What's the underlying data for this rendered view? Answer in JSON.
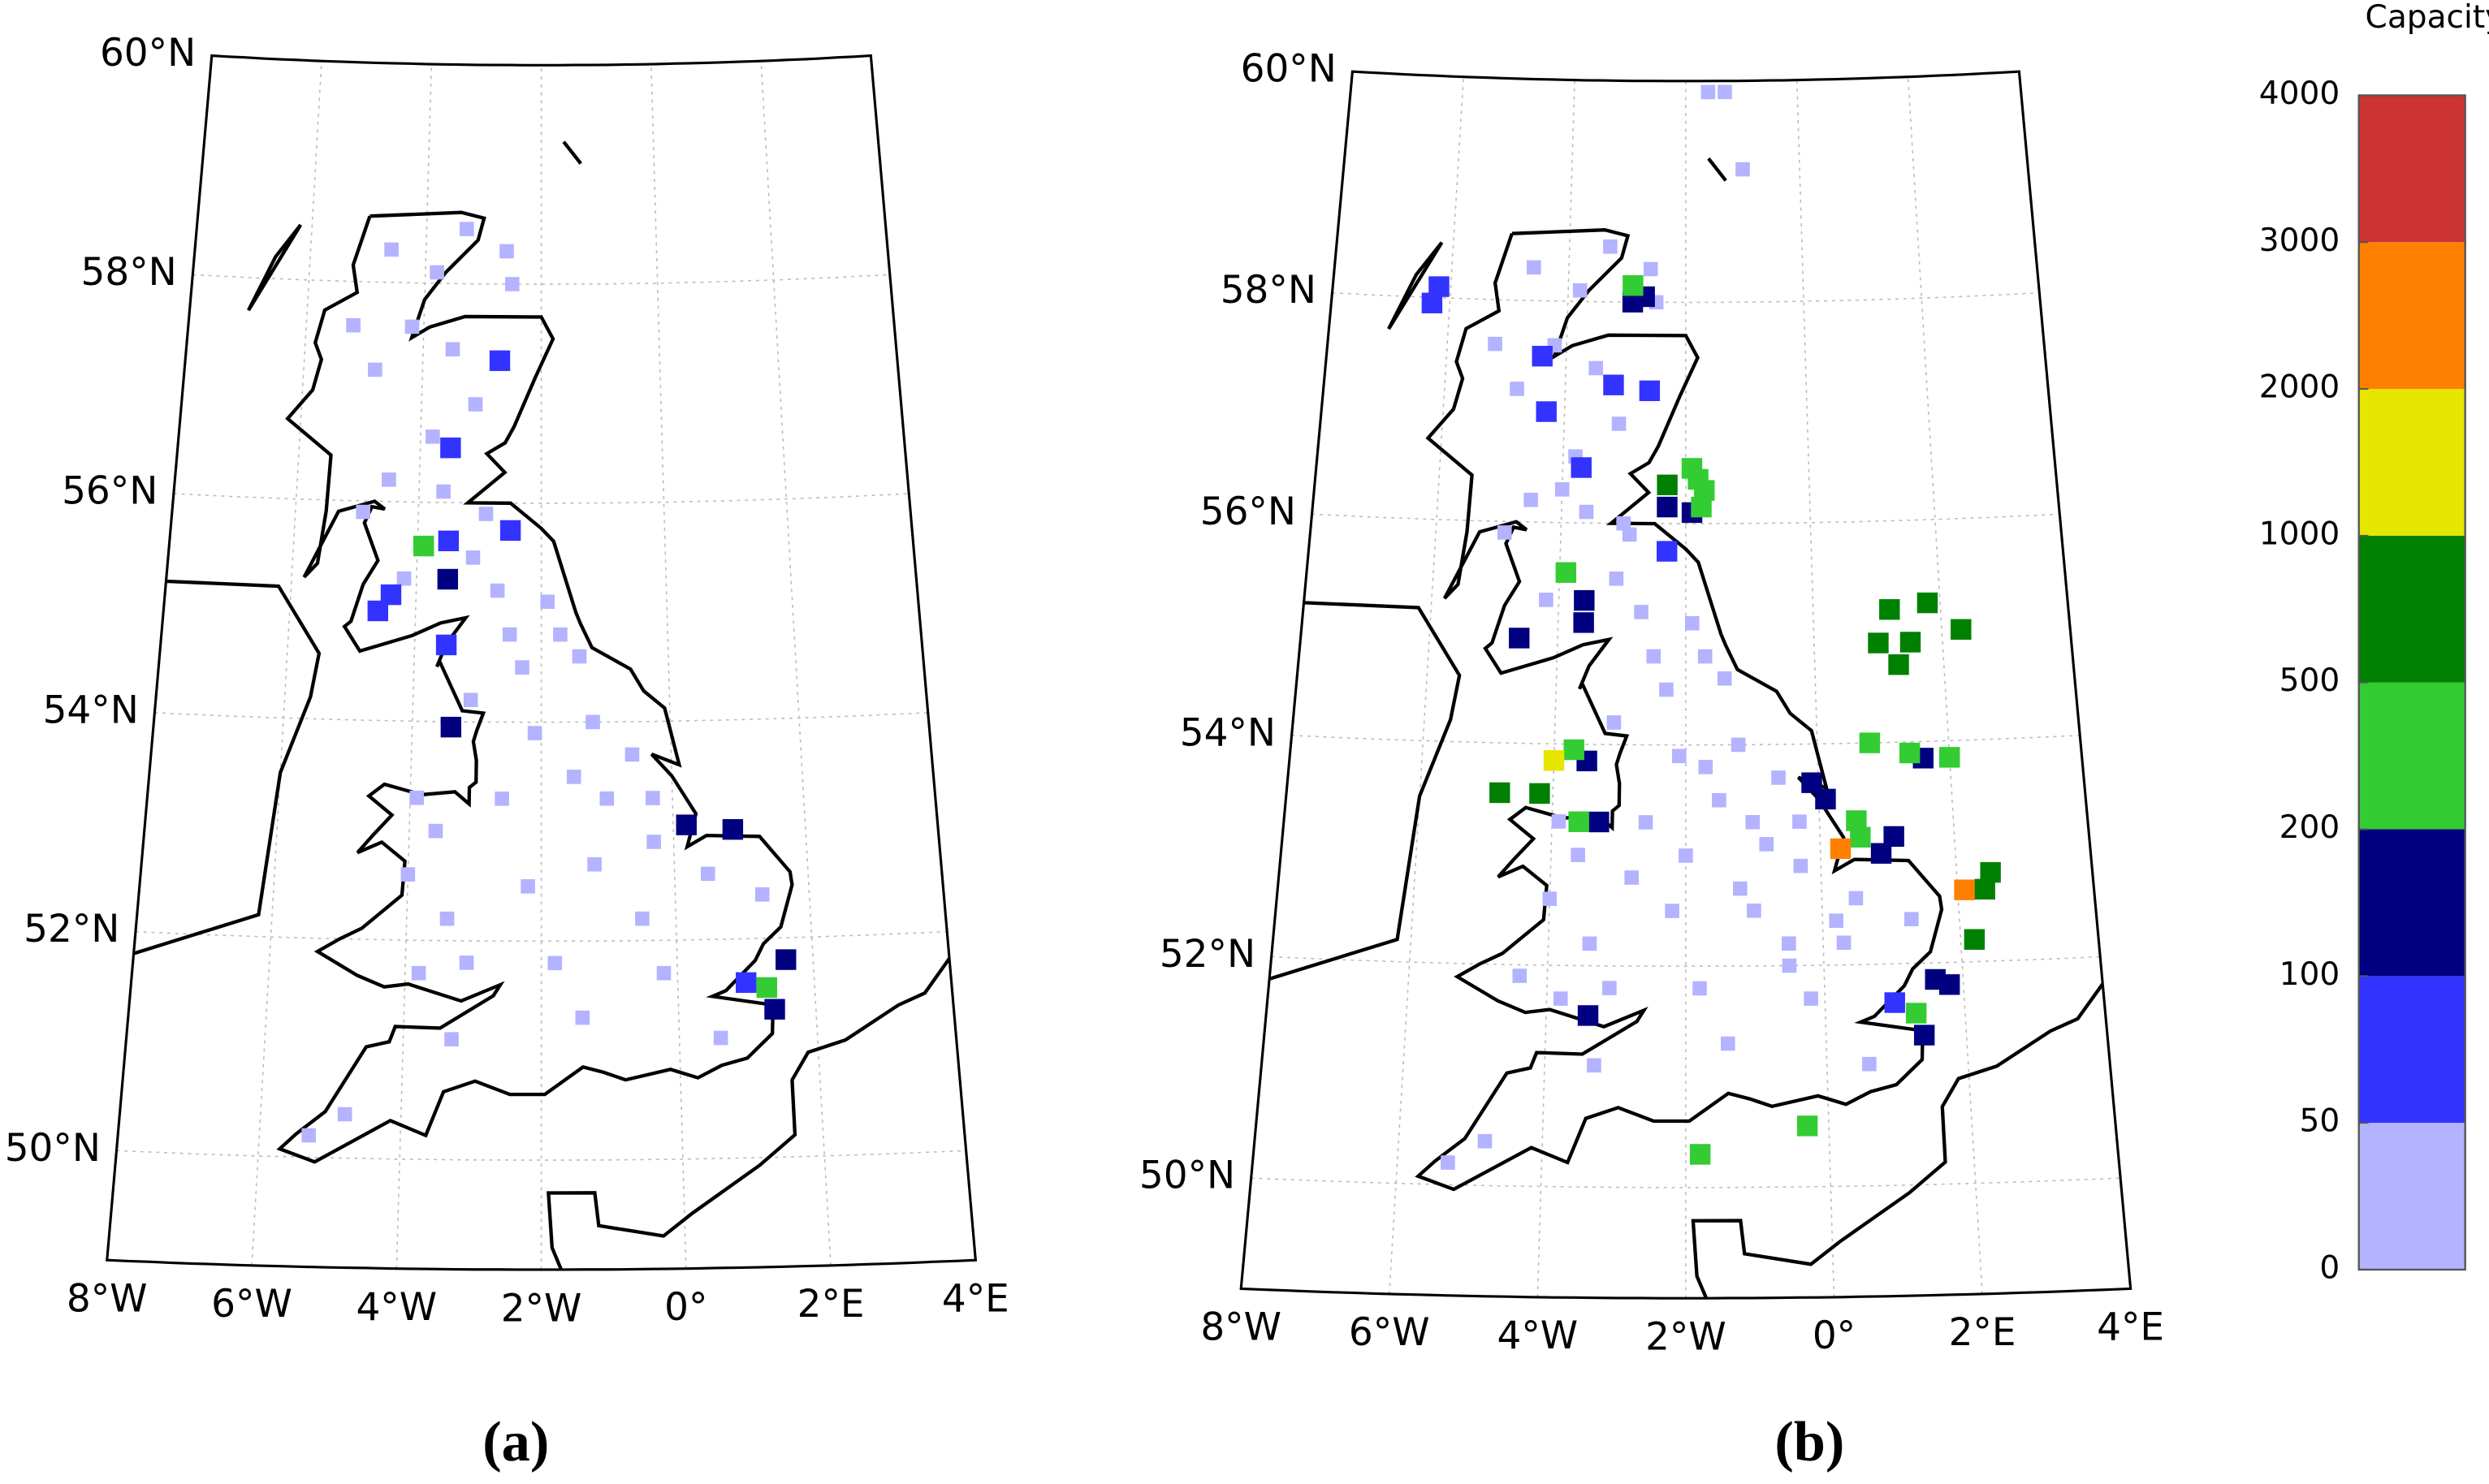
{
  "panels": [
    {
      "label": "(a)",
      "xlim": [
        -8,
        4
      ],
      "ylim": [
        49,
        60
      ],
      "xticks": [
        {
          "value": -8,
          "label": "8°W"
        },
        {
          "value": -6,
          "label": "6°W"
        },
        {
          "value": -4,
          "label": "4°W"
        },
        {
          "value": -2,
          "label": "2°W"
        },
        {
          "value": 0,
          "label": "0°"
        },
        {
          "value": 2,
          "label": "2°E"
        },
        {
          "value": 4,
          "label": "4°E"
        }
      ],
      "yticks": [
        {
          "value": 50,
          "label": "50°N"
        },
        {
          "value": 52,
          "label": "52°N"
        },
        {
          "value": 54,
          "label": "54°N"
        },
        {
          "value": 56,
          "label": "56°N"
        },
        {
          "value": 58,
          "label": "58°N"
        },
        {
          "value": 60,
          "label": "60°N"
        }
      ],
      "markers": [
        [
          -4.6,
          58.3,
          0
        ],
        [
          -3.8,
          58.1,
          0
        ],
        [
          -3.3,
          58.5,
          0
        ],
        [
          -2.6,
          58.3,
          0
        ],
        [
          -2.5,
          58.0,
          0
        ],
        [
          -4.2,
          57.6,
          0
        ],
        [
          -3.5,
          57.4,
          0
        ],
        [
          -4.8,
          57.2,
          0
        ],
        [
          -5.2,
          57.6,
          0
        ],
        [
          -3.1,
          56.9,
          0
        ],
        [
          -3.8,
          56.6,
          0
        ],
        [
          -4.5,
          56.2,
          0
        ],
        [
          -4.9,
          55.9,
          0
        ],
        [
          -3.6,
          56.1,
          0
        ],
        [
          -2.9,
          55.9,
          0
        ],
        [
          -3.1,
          55.5,
          0
        ],
        [
          -2.7,
          55.2,
          0
        ],
        [
          -4.2,
          55.3,
          0
        ],
        [
          -1.9,
          55.1,
          0
        ],
        [
          -1.7,
          54.8,
          0
        ],
        [
          -1.4,
          54.6,
          0
        ],
        [
          -2.3,
          54.5,
          0
        ],
        [
          -3.1,
          54.2,
          0
        ],
        [
          -2.1,
          53.9,
          0
        ],
        [
          -1.2,
          54.0,
          0
        ],
        [
          -0.6,
          53.7,
          0
        ],
        [
          -1.5,
          53.5,
          0
        ],
        [
          -2.6,
          53.3,
          0
        ],
        [
          -3.6,
          53.0,
          0
        ],
        [
          -4.0,
          52.6,
          0
        ],
        [
          -3.4,
          52.2,
          0
        ],
        [
          -3.8,
          51.7,
          0
        ],
        [
          -3.1,
          51.8,
          0
        ],
        [
          -2.2,
          52.5,
          0
        ],
        [
          -1.2,
          52.7,
          0
        ],
        [
          -0.3,
          52.9,
          0
        ],
        [
          0.5,
          52.6,
          0
        ],
        [
          -0.5,
          52.2,
          0
        ],
        [
          -1.8,
          51.8,
          0
        ],
        [
          -0.2,
          51.7,
          0
        ],
        [
          1.3,
          52.4,
          0
        ],
        [
          -3.3,
          51.1,
          0
        ],
        [
          -4.8,
          50.4,
          0
        ],
        [
          -5.3,
          50.2,
          0
        ],
        [
          -1.4,
          51.3,
          0
        ],
        [
          0.6,
          51.1,
          0
        ],
        [
          -0.3,
          53.3,
          0
        ],
        [
          -1.0,
          53.3,
          0
        ],
        [
          -3.9,
          53.3,
          0
        ],
        [
          -2.5,
          54.8,
          0
        ],
        [
          -3.9,
          55.6,
          3
        ],
        [
          -3.5,
          55.3,
          2
        ],
        [
          -3.5,
          56.5,
          1
        ],
        [
          -2.7,
          57.3,
          1
        ],
        [
          -3.5,
          55.65,
          1
        ],
        [
          -2.5,
          55.75,
          1
        ],
        [
          -4.6,
          55.0,
          1
        ],
        [
          -3.5,
          54.7,
          1
        ],
        [
          -3.4,
          53.95,
          2
        ],
        [
          0.2,
          53.05,
          2
        ],
        [
          0.9,
          53.0,
          2
        ],
        [
          1.6,
          51.8,
          2
        ],
        [
          1.0,
          51.6,
          1
        ],
        [
          1.3,
          51.55,
          3
        ],
        [
          1.4,
          51.35,
          2
        ],
        [
          -4.4,
          55.15,
          1
        ]
      ]
    },
    {
      "label": "(b)",
      "xlim": [
        -8,
        4
      ],
      "ylim": [
        49,
        60
      ],
      "xticks": [
        {
          "value": -8,
          "label": "8°W"
        },
        {
          "value": -6,
          "label": "6°W"
        },
        {
          "value": -4,
          "label": "4°W"
        },
        {
          "value": -2,
          "label": "2°W"
        },
        {
          "value": 0,
          "label": "0°"
        },
        {
          "value": 2,
          "label": "2°E"
        },
        {
          "value": 4,
          "label": "4°E"
        }
      ],
      "yticks": [
        {
          "value": 50,
          "label": "50°N"
        },
        {
          "value": 52,
          "label": "52°N"
        },
        {
          "value": 54,
          "label": "54°N"
        },
        {
          "value": 56,
          "label": "56°N"
        },
        {
          "value": 58,
          "label": "58°N"
        },
        {
          "value": 60,
          "label": "60°N"
        }
      ],
      "markers": [
        [
          -4.6,
          58.3,
          0
        ],
        [
          -3.8,
          58.1,
          0
        ],
        [
          -3.3,
          58.5,
          0
        ],
        [
          -2.6,
          58.3,
          0
        ],
        [
          -2.5,
          58.0,
          0
        ],
        [
          -4.2,
          57.6,
          0
        ],
        [
          -3.5,
          57.4,
          0
        ],
        [
          -4.8,
          57.2,
          0
        ],
        [
          -5.2,
          57.6,
          0
        ],
        [
          -3.1,
          56.9,
          0
        ],
        [
          -3.8,
          56.6,
          0
        ],
        [
          -4.5,
          56.2,
          0
        ],
        [
          -4.9,
          55.9,
          0
        ],
        [
          -3.6,
          56.1,
          0
        ],
        [
          -2.9,
          55.9,
          0
        ],
        [
          -3.1,
          55.5,
          0
        ],
        [
          -2.7,
          55.2,
          0
        ],
        [
          -4.2,
          55.3,
          0
        ],
        [
          -1.9,
          55.1,
          0
        ],
        [
          -1.7,
          54.8,
          0
        ],
        [
          -1.4,
          54.6,
          0
        ],
        [
          -2.3,
          54.5,
          0
        ],
        [
          -3.1,
          54.2,
          0
        ],
        [
          -2.1,
          53.9,
          0
        ],
        [
          -1.2,
          54.0,
          0
        ],
        [
          -0.6,
          53.7,
          0
        ],
        [
          -1.5,
          53.5,
          0
        ],
        [
          -2.6,
          53.3,
          0
        ],
        [
          -3.6,
          53.0,
          0
        ],
        [
          -4.0,
          52.6,
          0
        ],
        [
          -3.4,
          52.2,
          0
        ],
        [
          -3.8,
          51.7,
          0
        ],
        [
          -3.1,
          51.8,
          0
        ],
        [
          -2.2,
          52.5,
          0
        ],
        [
          -1.2,
          52.7,
          0
        ],
        [
          -0.3,
          52.9,
          0
        ],
        [
          0.5,
          52.6,
          0
        ],
        [
          -0.5,
          52.2,
          0
        ],
        [
          -1.8,
          51.8,
          0
        ],
        [
          -0.2,
          51.7,
          0
        ],
        [
          1.3,
          52.4,
          0
        ],
        [
          -3.3,
          51.1,
          0
        ],
        [
          -4.8,
          50.4,
          0
        ],
        [
          -5.3,
          50.2,
          0
        ],
        [
          -1.4,
          51.3,
          0
        ],
        [
          0.6,
          51.1,
          0
        ],
        [
          -0.3,
          53.3,
          0
        ],
        [
          -1.0,
          53.3,
          0
        ],
        [
          -3.9,
          53.3,
          0
        ],
        [
          -2.5,
          54.8,
          0
        ],
        [
          -1.6,
          59.9,
          0
        ],
        [
          -1.3,
          59.9,
          0
        ],
        [
          -1.0,
          59.2,
          0
        ],
        [
          -4.0,
          56.3,
          0
        ],
        [
          -3.0,
          56.0,
          0
        ],
        [
          -2.0,
          53.0,
          0
        ],
        [
          -1.0,
          52.5,
          0
        ],
        [
          -0.5,
          52.0,
          0
        ],
        [
          0.3,
          52.2,
          0
        ],
        [
          -1.7,
          53.8,
          0
        ],
        [
          -0.8,
          53.1,
          0
        ],
        [
          -2.8,
          52.8,
          0
        ],
        [
          -4.4,
          51.9,
          0
        ],
        [
          0.2,
          52.4,
          0
        ],
        [
          -6.2,
          58.1,
          1
        ],
        [
          -6.3,
          57.95,
          1
        ],
        [
          -4.4,
          57.5,
          1
        ],
        [
          -4.3,
          57.0,
          1
        ],
        [
          -3.2,
          57.25,
          1
        ],
        [
          -2.6,
          57.2,
          1
        ],
        [
          -2.3,
          55.75,
          1
        ],
        [
          -3.7,
          56.5,
          1
        ],
        [
          1.0,
          51.65,
          1
        ],
        [
          -2.9,
          58.0,
          2
        ],
        [
          -2.7,
          58.05,
          2
        ],
        [
          -2.3,
          56.15,
          2
        ],
        [
          -1.9,
          56.1,
          2
        ],
        [
          -3.6,
          55.3,
          2
        ],
        [
          -3.6,
          55.1,
          2
        ],
        [
          -4.6,
          54.95,
          2
        ],
        [
          -3.5,
          53.85,
          2
        ],
        [
          -3.3,
          53.3,
          2
        ],
        [
          1.6,
          53.85,
          2
        ],
        [
          -0.1,
          53.65,
          2
        ],
        [
          0.1,
          53.5,
          2
        ],
        [
          0.9,
          53.0,
          2
        ],
        [
          1.1,
          53.15,
          2
        ],
        [
          1.6,
          51.85,
          2
        ],
        [
          1.8,
          51.8,
          2
        ],
        [
          1.4,
          51.35,
          2
        ],
        [
          -3.4,
          51.55,
          2
        ],
        [
          -2.9,
          58.15,
          3
        ],
        [
          -1.9,
          56.5,
          3
        ],
        [
          -1.8,
          56.4,
          3
        ],
        [
          -1.7,
          56.3,
          3
        ],
        [
          -1.75,
          56.15,
          3
        ],
        [
          -3.9,
          55.55,
          3
        ],
        [
          -3.7,
          53.95,
          3
        ],
        [
          -3.6,
          53.3,
          3
        ],
        [
          0.8,
          54.0,
          3
        ],
        [
          1.4,
          53.9,
          3
        ],
        [
          2.0,
          53.85,
          3
        ],
        [
          0.55,
          53.3,
          3
        ],
        [
          0.6,
          53.15,
          3
        ],
        [
          1.3,
          51.55,
          3
        ],
        [
          -0.3,
          50.55,
          3
        ],
        [
          -1.8,
          50.3,
          3
        ],
        [
          -2.3,
          56.35,
          4
        ],
        [
          -4.8,
          53.55,
          4
        ],
        [
          -4.2,
          53.55,
          4
        ],
        [
          1.2,
          55.2,
          4
        ],
        [
          1.8,
          55.25,
          4
        ],
        [
          2.3,
          55.0,
          4
        ],
        [
          1.0,
          54.9,
          4
        ],
        [
          1.5,
          54.9,
          4
        ],
        [
          1.3,
          54.7,
          4
        ],
        [
          2.5,
          52.8,
          4
        ],
        [
          2.4,
          52.65,
          4
        ],
        [
          2.2,
          52.2,
          4
        ],
        [
          -4.0,
          53.85,
          5
        ],
        [
          0.3,
          53.05,
          6
        ],
        [
          2.1,
          52.65,
          6
        ]
      ]
    }
  ],
  "colorbar": {
    "title": "Capacity (MW)",
    "ticks": [
      0,
      50,
      100,
      200,
      500,
      1000,
      2000,
      3000,
      4000
    ],
    "colors": [
      "#b3b3ff",
      "#3333ff",
      "#000080",
      "#33cc33",
      "#008000",
      "#e6e600",
      "#ff8000",
      "#cc3333"
    ]
  }
}
